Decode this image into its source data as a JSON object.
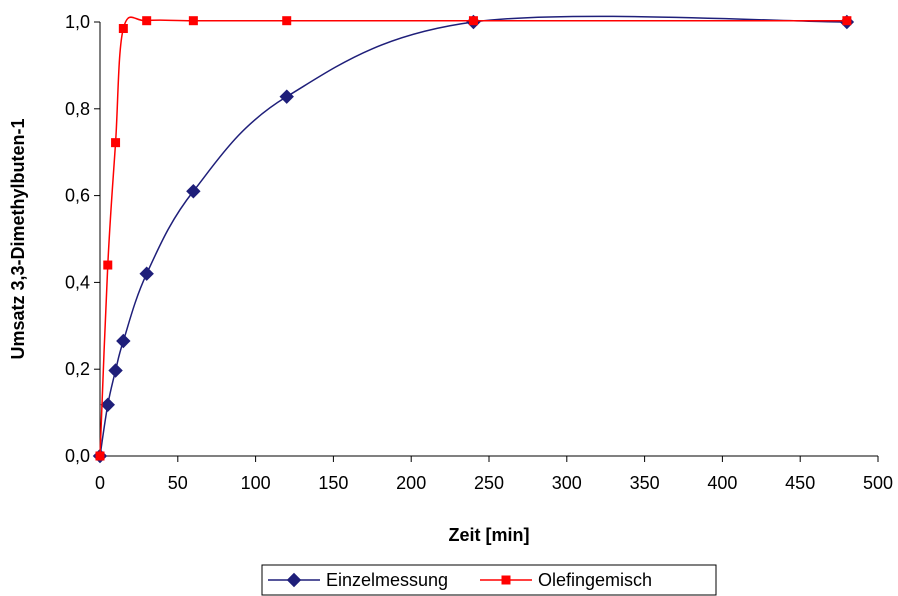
{
  "chart_data": {
    "type": "line",
    "title": "",
    "xlabel": "Zeit [min]",
    "ylabel": "Umsatz 3,3-Dimethylbuten-1",
    "xlim": [
      0,
      500
    ],
    "ylim": [
      0,
      1.0
    ],
    "x_ticks": [
      0,
      50,
      100,
      150,
      200,
      250,
      300,
      350,
      400,
      450,
      500
    ],
    "x_tick_labels": [
      "0",
      "50",
      "100",
      "150",
      "200",
      "250",
      "300",
      "350",
      "400",
      "450",
      "500"
    ],
    "y_ticks": [
      0,
      0.2,
      0.4,
      0.6,
      0.8,
      1.0
    ],
    "y_tick_labels": [
      "0,0",
      "0,2",
      "0,4",
      "0,6",
      "0,8",
      "1,0"
    ],
    "grid": false,
    "legend_position": "bottom",
    "series": [
      {
        "name": "Einzelmessung",
        "color": "#1f1f7a",
        "marker": "diamond",
        "x": [
          0,
          5,
          10,
          15,
          30,
          60,
          120,
          240,
          480
        ],
        "y": [
          0.0,
          0.118,
          0.197,
          0.265,
          0.42,
          0.61,
          0.828,
          1.0,
          1.0
        ]
      },
      {
        "name": "Olefingemisch",
        "color": "#ff0000",
        "marker": "square",
        "x": [
          0,
          5,
          10,
          15,
          30,
          60,
          120,
          240,
          480
        ],
        "y": [
          0.0,
          0.44,
          0.722,
          0.985,
          1.003,
          1.003,
          1.003,
          1.003,
          1.003
        ]
      }
    ]
  }
}
